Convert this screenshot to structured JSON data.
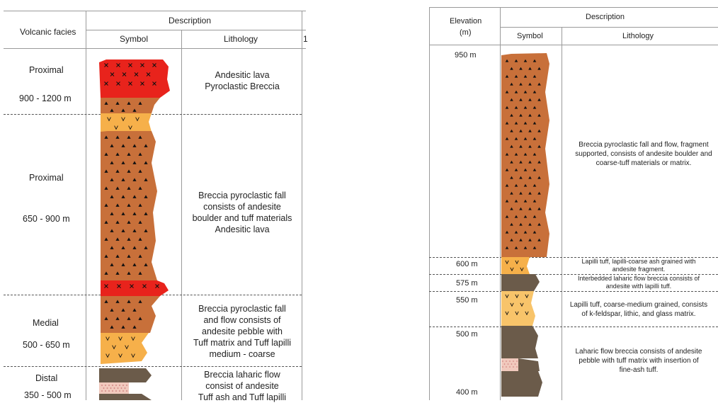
{
  "left_table": {
    "headers": {
      "facies": "Volcanic facies",
      "description": "Description",
      "symbol": "Symbol",
      "lithology": "Lithology",
      "cutoff": "1"
    },
    "rows": [
      {
        "facies": "Proximal",
        "range": "900 - 1200 m",
        "lithology": [
          "Andesitic lava",
          "Pyroclastic Breccia"
        ]
      },
      {
        "facies": "Proximal",
        "range": "650 - 900 m",
        "lithology": [
          "Breccia pyroclastic fall",
          "consists of andesite",
          "boulder and tuff materials",
          "Andesitic lava"
        ]
      },
      {
        "facies": "Medial",
        "range": "500 - 650 m",
        "lithology": [
          "Breccia pyroclastic fall",
          "and flow consists of",
          "andesite pebble with",
          "Tuff matrix and Tuff lapilli",
          "medium - coarse"
        ]
      },
      {
        "facies": "Distal",
        "range": "350 - 500 m",
        "lithology": [
          "Breccia laharic flow",
          "consist of andesite",
          "Tuff ash and Tuff lapilli"
        ]
      }
    ]
  },
  "right_table": {
    "headers": {
      "elevation": "Elevation",
      "elevation_unit": "(m)",
      "description": "Description",
      "symbol": "Symbol",
      "lithology": "Lithology"
    },
    "elevations": [
      "950 m",
      "600 m",
      "575 m",
      "550 m",
      "500 m",
      "400 m"
    ],
    "rows": [
      {
        "lithology": [
          "Breccia pyroclastic fall and flow, fragment",
          "supported, consists of andesite boulder and",
          "coarse-tuff materials or matrix."
        ]
      },
      {
        "lithology": [
          "Lapilli tuff, lapilli-coarse ash grained with",
          "andesite fragment."
        ]
      },
      {
        "lithology": [
          "Interbedded laharic flow breccia consists of",
          "andesite with lapilli tuff."
        ]
      },
      {
        "lithology": [
          "Lapilli tuff, coarse-medium grained, consists",
          "of k-feldspar, lithic, and glass matrix."
        ]
      },
      {
        "lithology": [
          "Laharic flow breccia consists of andesite",
          "pebble with tuff matrix with insertion of",
          "fine-ash tuff."
        ]
      }
    ]
  },
  "colors": {
    "lava": "#e8231c",
    "breccia": "#c8703a",
    "tuff": "#f6b04a",
    "tuff_light": "#f8c46a",
    "lahar": "#6b5b4a",
    "fine_ash": "#f1c9bd",
    "grid": "#9a9a9a"
  },
  "icons": [
    "triangle-pattern",
    "cross-pattern",
    "v-pattern",
    "dot-pattern"
  ]
}
